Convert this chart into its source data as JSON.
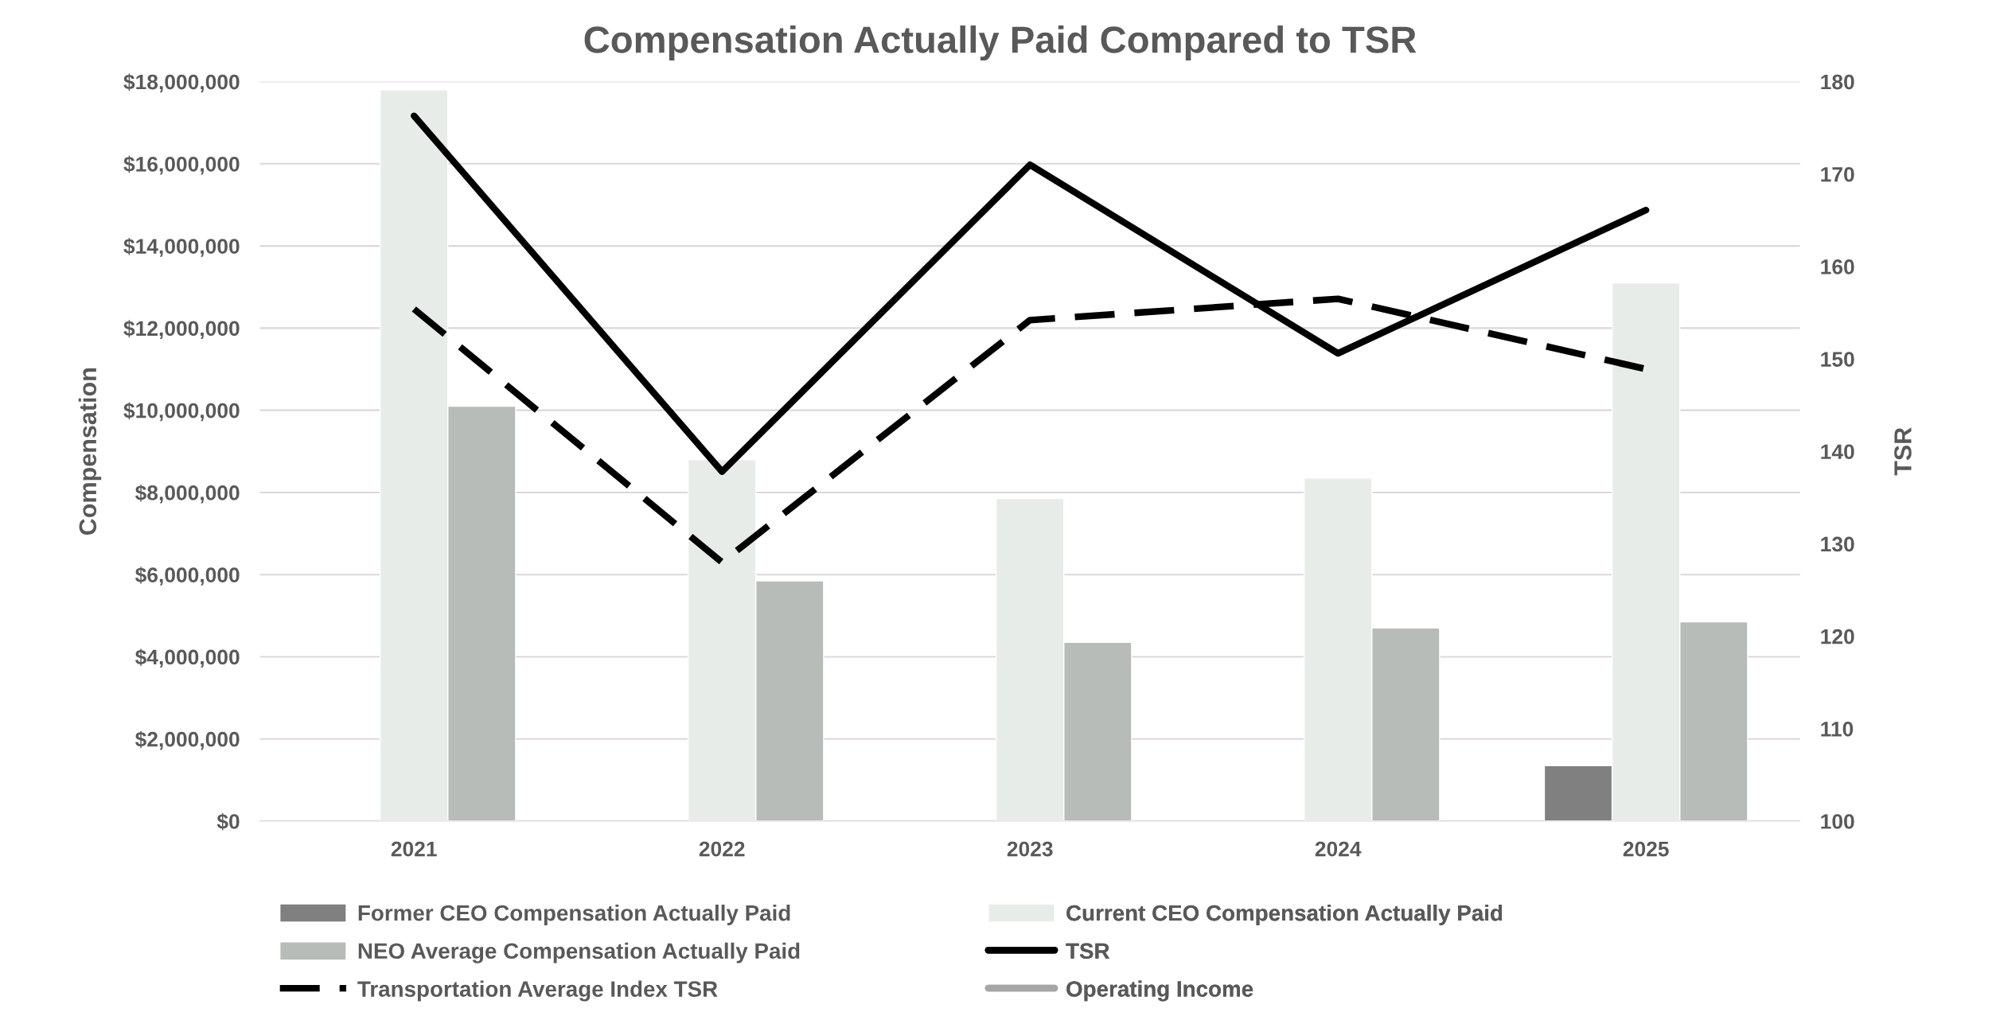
{
  "chart_data": {
    "type": "bar",
    "title": "Compensation Actually Paid Compared to TSR",
    "ylabel": "Compensation",
    "y2label": "TSR",
    "categories": [
      "2021",
      "2022",
      "2023",
      "2024",
      "2025"
    ],
    "series": [
      {
        "name": "Former CEO Compensation Actually Paid",
        "color": "#808080",
        "values": [
          null,
          null,
          null,
          null,
          1350000
        ]
      },
      {
        "name": "Current CEO Compensation Actually Paid",
        "color": "#e8ece9",
        "values": [
          17800000,
          8800000,
          7850000,
          8350000,
          13100000
        ]
      },
      {
        "name": "NEO Average Compensation Actually Paid",
        "color": "#b8bcb9",
        "values": [
          10100000,
          5850000,
          4350000,
          4700000,
          4850000
        ]
      },
      {
        "name": "TSR",
        "type": "line",
        "axis": "y2",
        "color": "#000000",
        "line_style": "solid",
        "values": [
          176.3,
          137.8,
          171,
          150.6,
          166.1
        ]
      },
      {
        "name": "Transportation Average Index TSR",
        "type": "line",
        "axis": "y2",
        "color": "#000000",
        "line_style": "dashed",
        "values": [
          155.4,
          128,
          154.2,
          156.5,
          148.9
        ]
      },
      {
        "name": "Operating Income",
        "type": "line",
        "color": "#a6a6a6",
        "line_style": "solid",
        "values": [
          null,
          null,
          null,
          null,
          null
        ]
      }
    ],
    "ylim": [
      0,
      18000000
    ],
    "yticks": [
      {
        "value": 0,
        "label": "$0"
      },
      {
        "value": 2000000,
        "label": "$2,000,000"
      },
      {
        "value": 4000000,
        "label": "$4,000,000"
      },
      {
        "value": 6000000,
        "label": "$6,000,000"
      },
      {
        "value": 8000000,
        "label": "$8,000,000"
      },
      {
        "value": 10000000,
        "label": "$10,000,000"
      },
      {
        "value": 12000000,
        "label": "$12,000,000"
      },
      {
        "value": 14000000,
        "label": "$14,000,000"
      },
      {
        "value": 16000000,
        "label": "$16,000,000"
      },
      {
        "value": 18000000,
        "label": "$18,000,000"
      }
    ],
    "y2lim": [
      100,
      180
    ],
    "y2ticks": [
      100,
      110,
      120,
      130,
      140,
      150,
      160,
      170,
      180
    ],
    "grid": "y",
    "legend": "bottom"
  }
}
